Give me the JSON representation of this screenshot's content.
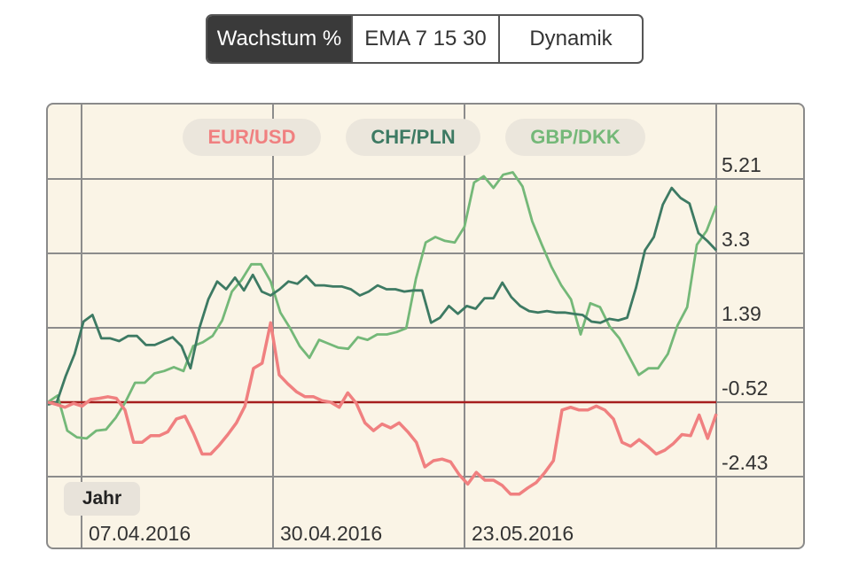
{
  "tabs": [
    {
      "label": "Wachstum %",
      "active": true
    },
    {
      "label": "EMA 7 15 30",
      "active": false
    },
    {
      "label": "Dynamik",
      "active": false
    }
  ],
  "period_button": "Jahr",
  "colors": {
    "eur_usd": "#f08080",
    "chf_pln": "#3d7a63",
    "gbp_dkk": "#74b878",
    "baseline": "#a61e1e",
    "grid": "#8c8c8c",
    "background": "#faf4e6"
  },
  "chart_data": {
    "type": "line",
    "ylim": [
      -4.34,
      7.12
    ],
    "y_ticks": [
      "5.21",
      "3.3",
      "1.39",
      "-0.52",
      "-2.43"
    ],
    "x_ticks": [
      "07.04.2016",
      "30.04.2016",
      "23.05.2016"
    ],
    "baseline": -0.52,
    "grid": true,
    "legend_position": "top",
    "series": [
      {
        "name": "EUR/USD",
        "color": "#f08080",
        "values": [
          -0.52,
          -0.58,
          -0.65,
          -0.55,
          -0.62,
          -0.45,
          -0.42,
          -0.38,
          -0.42,
          -0.72,
          -1.55,
          -1.55,
          -1.38,
          -1.38,
          -1.28,
          -0.95,
          -0.88,
          -1.32,
          -1.85,
          -1.85,
          -1.62,
          -1.35,
          -1.05,
          -0.62,
          0.35,
          0.48,
          1.52,
          0.18,
          -0.05,
          -0.25,
          -0.38,
          -0.38,
          -0.48,
          -0.52,
          -0.65,
          -0.28,
          -0.55,
          -1.05,
          -1.25,
          -1.08,
          -1.18,
          -1.05,
          -1.28,
          -1.55,
          -2.18,
          -2.02,
          -1.98,
          -2.05,
          -2.38,
          -2.62,
          -2.32,
          -2.52,
          -2.52,
          -2.65,
          -2.88,
          -2.88,
          -2.72,
          -2.58,
          -2.32,
          -2.02,
          -0.72,
          -0.65,
          -0.72,
          -0.72,
          -0.62,
          -0.72,
          -0.95,
          -1.55,
          -1.65,
          -1.48,
          -1.65,
          -1.85,
          -1.75,
          -1.58,
          -1.35,
          -1.38,
          -0.85,
          -1.45,
          -0.82
        ]
      },
      {
        "name": "CHF/PLN",
        "color": "#3d7a63",
        "values": [
          -0.58,
          -0.52,
          0.15,
          0.72,
          1.55,
          1.72,
          1.12,
          1.12,
          1.05,
          1.18,
          1.18,
          0.95,
          0.95,
          1.05,
          1.15,
          0.92,
          0.35,
          1.38,
          2.12,
          2.58,
          2.38,
          2.68,
          2.35,
          2.75,
          2.32,
          2.22,
          2.38,
          2.58,
          2.52,
          2.72,
          2.48,
          2.48,
          2.45,
          2.45,
          2.38,
          2.22,
          2.32,
          2.48,
          2.38,
          2.38,
          2.32,
          2.35,
          2.35,
          1.52,
          1.65,
          1.95,
          1.75,
          1.95,
          1.88,
          2.15,
          2.15,
          2.55,
          2.18,
          1.95,
          1.82,
          1.78,
          1.82,
          1.78,
          1.78,
          1.75,
          1.72,
          1.55,
          1.52,
          1.62,
          1.58,
          1.65,
          2.42,
          3.38,
          3.72,
          4.55,
          4.98,
          4.72,
          4.58,
          3.82,
          3.62,
          3.38
        ]
      },
      {
        "name": "GBP/DKK",
        "color": "#74b878",
        "values": [
          -0.52,
          -0.35,
          -1.25,
          -1.42,
          -1.45,
          -1.25,
          -1.22,
          -0.92,
          -0.52,
          -0.02,
          -0.02,
          0.22,
          0.28,
          0.38,
          0.28,
          0.92,
          1.02,
          1.18,
          1.58,
          2.32,
          2.62,
          3.02,
          3.02,
          2.58,
          1.78,
          1.38,
          0.92,
          0.62,
          1.08,
          0.98,
          0.88,
          0.85,
          1.15,
          1.08,
          1.22,
          1.22,
          1.28,
          1.38,
          2.65,
          3.58,
          3.72,
          3.62,
          3.58,
          3.98,
          5.12,
          5.28,
          4.98,
          5.32,
          5.38,
          5.02,
          4.12,
          3.52,
          2.95,
          2.48,
          2.12,
          1.22,
          2.02,
          1.92,
          1.42,
          1.12,
          0.65,
          0.18,
          0.35,
          0.35,
          0.72,
          1.45,
          1.92,
          3.52,
          3.88,
          4.52
        ]
      }
    ]
  }
}
